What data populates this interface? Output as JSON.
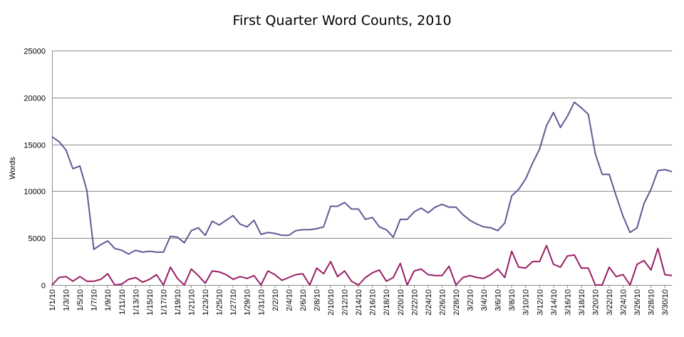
{
  "chart_data": {
    "type": "line",
    "title": "First Quarter Word Counts, 2010",
    "xlabel": "",
    "ylabel": "Words",
    "ylim": [
      0,
      25000
    ],
    "yticks": [
      0,
      5000,
      10000,
      15000,
      20000,
      25000
    ],
    "grid": true,
    "legend": "none",
    "x_tick_labels": [
      "1/1/10",
      "1/3/10",
      "1/5/10",
      "1/7/10",
      "1/9/10",
      "1/11/10",
      "1/13/10",
      "1/15/10",
      "1/17/10",
      "1/19/10",
      "1/21/10",
      "1/23/10",
      "1/25/10",
      "1/27/10",
      "1/29/10",
      "1/31/10",
      "2/2/10",
      "2/4/10",
      "2/6/10",
      "2/8/10",
      "2/10/10",
      "2/12/10",
      "2/14/10",
      "2/16/10",
      "2/18/10",
      "2/20/10",
      "2/22/10",
      "2/24/10",
      "2/26/10",
      "2/28/10",
      "3/2/10",
      "3/4/10",
      "3/6/10",
      "3/8/10",
      "3/10/10",
      "3/12/10",
      "3/14/10",
      "3/16/10",
      "3/18/10",
      "3/20/10",
      "3/22/10",
      "3/24/10",
      "3/26/10",
      "3/28/10",
      "3/30/10"
    ],
    "series": [
      {
        "color": "#5c5c96",
        "values": [
          15800,
          15300,
          14400,
          12400,
          12700,
          10100,
          3800,
          4300,
          4700,
          3900,
          3700,
          3300,
          3700,
          3500,
          3600,
          3500,
          3500,
          5200,
          5100,
          4500,
          5800,
          6100,
          5300,
          6800,
          6400,
          6900,
          7400,
          6500,
          6200,
          6900,
          5400,
          5600,
          5500,
          5300,
          5300,
          5800,
          5900,
          5900,
          6000,
          6200,
          8400,
          8400,
          8800,
          8100,
          8100,
          7000,
          7200,
          6200,
          5900,
          5100,
          7000,
          7000,
          7800,
          8200,
          7700,
          8300,
          8600,
          8300,
          8300,
          7500,
          6900,
          6500,
          6200,
          6100,
          5800,
          6600,
          9500,
          10200,
          11300,
          13000,
          14500,
          17000,
          18400,
          16800,
          18000,
          19500,
          18900,
          18200,
          14000,
          11800,
          11800,
          9500,
          7300,
          5600,
          6100,
          8700,
          10200,
          12200,
          12300,
          12100
        ]
      },
      {
        "color": "#991f66",
        "values": [
          0,
          800,
          900,
          400,
          900,
          400,
          400,
          600,
          1200,
          0,
          100,
          600,
          800,
          300,
          600,
          1100,
          0,
          1900,
          700,
          0,
          1700,
          1000,
          200,
          1500,
          1400,
          1100,
          600,
          900,
          700,
          1000,
          0,
          1500,
          1100,
          500,
          800,
          1100,
          1200,
          0,
          1800,
          1200,
          2500,
          900,
          1500,
          400,
          0,
          800,
          1300,
          1600,
          400,
          800,
          2300,
          0,
          1500,
          1700,
          1100,
          1000,
          1000,
          2000,
          0,
          800,
          1000,
          800,
          700,
          1100,
          1700,
          800,
          3600,
          1900,
          1800,
          2500,
          2500,
          4200,
          2200,
          1900,
          3100,
          3200,
          1800,
          1800,
          0,
          0,
          1900,
          900,
          1100,
          0,
          2200,
          2600,
          1600,
          3900,
          1100,
          1000
        ]
      }
    ]
  }
}
